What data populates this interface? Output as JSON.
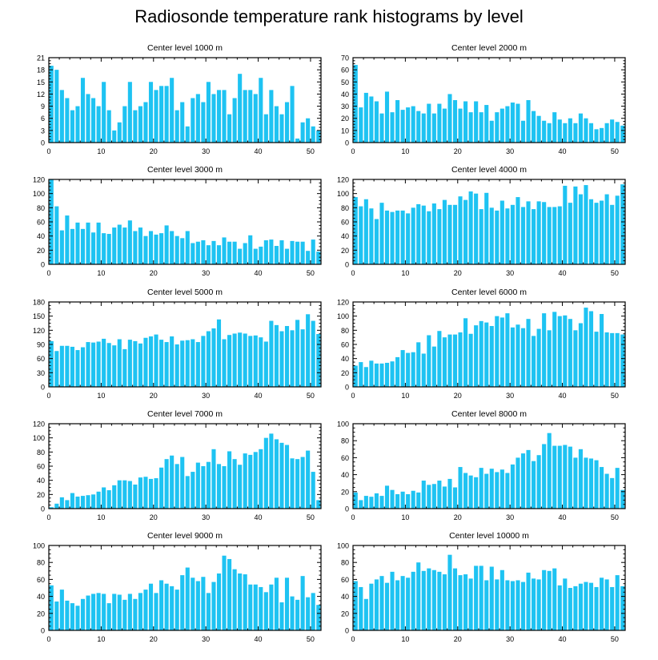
{
  "title": "Radiosonde temperature rank histograms by level",
  "colors": {
    "bar": "#1ec3f2",
    "axis": "#000000",
    "background": "#ffffff"
  },
  "chart_data": [
    {
      "type": "bar",
      "title": "Center level 1000 m",
      "x": [
        0,
        1,
        2,
        3,
        4,
        5,
        6,
        7,
        8,
        9,
        10,
        11,
        12,
        13,
        14,
        15,
        16,
        17,
        18,
        19,
        20,
        21,
        22,
        23,
        24,
        25,
        26,
        27,
        28,
        29,
        30,
        31,
        32,
        33,
        34,
        35,
        36,
        37,
        38,
        39,
        40,
        41,
        42,
        43,
        44,
        45,
        46,
        47,
        48,
        49,
        50,
        51
      ],
      "values": [
        19,
        18,
        13,
        11,
        8,
        9,
        16,
        12,
        11,
        9,
        15,
        8,
        3,
        5,
        9,
        15,
        8,
        9,
        10,
        15,
        13,
        14,
        14,
        16,
        8,
        10,
        4,
        11,
        12,
        10,
        15,
        12,
        13,
        13,
        7,
        11,
        17,
        13,
        13,
        12,
        16,
        7,
        13,
        9,
        7,
        10,
        14,
        1,
        5,
        6,
        4,
        3
      ],
      "xlim": [
        0,
        52
      ],
      "ylim": [
        0,
        21
      ],
      "yticks": [
        0,
        3,
        6,
        9,
        12,
        15,
        18,
        21
      ],
      "xticks": [
        0,
        10,
        20,
        30,
        40,
        50
      ],
      "xlabel": "",
      "ylabel": ""
    },
    {
      "type": "bar",
      "title": "Center level 2000 m",
      "x": [
        0,
        1,
        2,
        3,
        4,
        5,
        6,
        7,
        8,
        9,
        10,
        11,
        12,
        13,
        14,
        15,
        16,
        17,
        18,
        19,
        20,
        21,
        22,
        23,
        24,
        25,
        26,
        27,
        28,
        29,
        30,
        31,
        32,
        33,
        34,
        35,
        36,
        37,
        38,
        39,
        40,
        41,
        42,
        43,
        44,
        45,
        46,
        47,
        48,
        49,
        50,
        51
      ],
      "values": [
        64,
        29,
        41,
        38,
        34,
        24,
        42,
        25,
        35,
        27,
        29,
        30,
        26,
        24,
        32,
        24,
        32,
        28,
        40,
        35,
        28,
        34,
        25,
        34,
        25,
        31,
        18,
        25,
        28,
        30,
        33,
        32,
        18,
        35,
        26,
        22,
        18,
        16,
        25,
        19,
        16,
        20,
        16,
        24,
        20,
        16,
        11,
        12,
        16,
        19,
        17,
        14
      ],
      "xlim": [
        0,
        52
      ],
      "ylim": [
        0,
        70
      ],
      "yticks": [
        0,
        10,
        20,
        30,
        40,
        50,
        60,
        70
      ],
      "xticks": [
        0,
        10,
        20,
        30,
        40,
        50
      ],
      "xlabel": "",
      "ylabel": ""
    },
    {
      "type": "bar",
      "title": "Center level 3000 m",
      "x": [
        0,
        1,
        2,
        3,
        4,
        5,
        6,
        7,
        8,
        9,
        10,
        11,
        12,
        13,
        14,
        15,
        16,
        17,
        18,
        19,
        20,
        21,
        22,
        23,
        24,
        25,
        26,
        27,
        28,
        29,
        30,
        31,
        32,
        33,
        34,
        35,
        36,
        37,
        38,
        39,
        40,
        41,
        42,
        43,
        44,
        45,
        46,
        47,
        48,
        49,
        50,
        51
      ],
      "values": [
        120,
        82,
        48,
        69,
        50,
        59,
        50,
        59,
        45,
        59,
        44,
        43,
        52,
        56,
        52,
        62,
        47,
        52,
        40,
        47,
        42,
        44,
        55,
        47,
        40,
        37,
        47,
        30,
        32,
        34,
        27,
        33,
        27,
        38,
        32,
        32,
        22,
        30,
        41,
        22,
        25,
        34,
        35,
        26,
        34,
        22,
        33,
        32,
        32,
        19,
        35,
        18
      ],
      "xlim": [
        0,
        52
      ],
      "ylim": [
        0,
        120
      ],
      "yticks": [
        0,
        20,
        40,
        60,
        80,
        100,
        120
      ],
      "xticks": [
        0,
        10,
        20,
        30,
        40,
        50
      ],
      "xlabel": "",
      "ylabel": ""
    },
    {
      "type": "bar",
      "title": "Center level 4000 m",
      "x": [
        0,
        1,
        2,
        3,
        4,
        5,
        6,
        7,
        8,
        9,
        10,
        11,
        12,
        13,
        14,
        15,
        16,
        17,
        18,
        19,
        20,
        21,
        22,
        23,
        24,
        25,
        26,
        27,
        28,
        29,
        30,
        31,
        32,
        33,
        34,
        35,
        36,
        37,
        38,
        39,
        40,
        41,
        42,
        43,
        44,
        45,
        46,
        47,
        48,
        49,
        50,
        51
      ],
      "values": [
        95,
        82,
        92,
        79,
        64,
        87,
        76,
        74,
        76,
        76,
        72,
        80,
        85,
        83,
        75,
        86,
        78,
        91,
        84,
        84,
        96,
        91,
        103,
        100,
        78,
        101,
        80,
        76,
        90,
        79,
        84,
        95,
        81,
        89,
        78,
        89,
        88,
        81,
        81,
        82,
        111,
        87,
        110,
        99,
        112,
        92,
        87,
        90,
        99,
        84,
        97,
        113
      ],
      "xlim": [
        0,
        52
      ],
      "ylim": [
        0,
        120
      ],
      "yticks": [
        0,
        20,
        40,
        60,
        80,
        100,
        120
      ],
      "xticks": [
        0,
        10,
        20,
        30,
        40,
        50
      ],
      "xlabel": "",
      "ylabel": ""
    },
    {
      "type": "bar",
      "title": "Center level 5000 m",
      "x": [
        0,
        1,
        2,
        3,
        4,
        5,
        6,
        7,
        8,
        9,
        10,
        11,
        12,
        13,
        14,
        15,
        16,
        17,
        18,
        19,
        20,
        21,
        22,
        23,
        24,
        25,
        26,
        27,
        28,
        29,
        30,
        31,
        32,
        33,
        34,
        35,
        36,
        37,
        38,
        39,
        40,
        41,
        42,
        43,
        44,
        45,
        46,
        47,
        48,
        49,
        50,
        51
      ],
      "values": [
        97,
        76,
        87,
        87,
        85,
        78,
        84,
        95,
        94,
        96,
        102,
        93,
        88,
        101,
        80,
        100,
        97,
        92,
        104,
        107,
        111,
        100,
        95,
        107,
        90,
        98,
        99,
        101,
        95,
        108,
        118,
        124,
        143,
        101,
        110,
        113,
        115,
        113,
        108,
        109,
        105,
        96,
        140,
        131,
        118,
        129,
        120,
        142,
        122,
        154,
        140,
        112
      ],
      "xlim": [
        0,
        52
      ],
      "ylim": [
        0,
        180
      ],
      "yticks": [
        0,
        30,
        60,
        90,
        120,
        150,
        180
      ],
      "xticks": [
        0,
        10,
        20,
        30,
        40,
        50
      ],
      "xlabel": "",
      "ylabel": ""
    },
    {
      "type": "bar",
      "title": "Center level 6000 m",
      "x": [
        0,
        1,
        2,
        3,
        4,
        5,
        6,
        7,
        8,
        9,
        10,
        11,
        12,
        13,
        14,
        15,
        16,
        17,
        18,
        19,
        20,
        21,
        22,
        23,
        24,
        25,
        26,
        27,
        28,
        29,
        30,
        31,
        32,
        33,
        34,
        35,
        36,
        37,
        38,
        39,
        40,
        41,
        42,
        43,
        44,
        45,
        46,
        47,
        48,
        49,
        50,
        51
      ],
      "values": [
        30,
        35,
        28,
        37,
        33,
        33,
        34,
        36,
        42,
        52,
        48,
        49,
        63,
        47,
        73,
        57,
        79,
        70,
        74,
        74,
        77,
        97,
        75,
        87,
        93,
        91,
        86,
        100,
        98,
        104,
        84,
        88,
        83,
        96,
        72,
        82,
        104,
        80,
        106,
        100,
        101,
        96,
        80,
        90,
        112,
        107,
        78,
        103,
        77,
        76,
        76,
        74
      ],
      "xlim": [
        0,
        52
      ],
      "ylim": [
        0,
        120
      ],
      "yticks": [
        0,
        20,
        40,
        60,
        80,
        100,
        120
      ],
      "xticks": [
        0,
        10,
        20,
        30,
        40,
        50
      ],
      "xlabel": "",
      "ylabel": ""
    },
    {
      "type": "bar",
      "title": "Center level 7000 m",
      "x": [
        0,
        1,
        2,
        3,
        4,
        5,
        6,
        7,
        8,
        9,
        10,
        11,
        12,
        13,
        14,
        15,
        16,
        17,
        18,
        19,
        20,
        21,
        22,
        23,
        24,
        25,
        26,
        27,
        28,
        29,
        30,
        31,
        32,
        33,
        34,
        35,
        36,
        37,
        38,
        39,
        40,
        41,
        42,
        43,
        44,
        45,
        46,
        47,
        48,
        49,
        50,
        51
      ],
      "values": [
        2,
        7,
        16,
        12,
        22,
        17,
        18,
        19,
        20,
        24,
        30,
        26,
        33,
        40,
        40,
        39,
        34,
        44,
        45,
        42,
        43,
        58,
        70,
        75,
        63,
        73,
        46,
        52,
        65,
        60,
        66,
        84,
        63,
        60,
        81,
        70,
        62,
        78,
        76,
        80,
        84,
        100,
        106,
        98,
        93,
        90,
        71,
        70,
        73,
        82,
        52,
        12
      ],
      "xlim": [
        0,
        52
      ],
      "ylim": [
        0,
        120
      ],
      "yticks": [
        0,
        20,
        40,
        60,
        80,
        100,
        120
      ],
      "xticks": [
        0,
        10,
        20,
        30,
        40,
        50
      ],
      "xlabel": "",
      "ylabel": ""
    },
    {
      "type": "bar",
      "title": "Center level 8000 m",
      "x": [
        0,
        1,
        2,
        3,
        4,
        5,
        6,
        7,
        8,
        9,
        10,
        11,
        12,
        13,
        14,
        15,
        16,
        17,
        18,
        19,
        20,
        21,
        22,
        23,
        24,
        25,
        26,
        27,
        28,
        29,
        30,
        31,
        32,
        33,
        34,
        35,
        36,
        37,
        38,
        39,
        40,
        41,
        42,
        43,
        44,
        45,
        46,
        47,
        48,
        49,
        50,
        51
      ],
      "values": [
        19,
        10,
        15,
        14,
        18,
        15,
        27,
        22,
        17,
        20,
        17,
        21,
        19,
        33,
        28,
        29,
        33,
        26,
        35,
        25,
        49,
        42,
        39,
        37,
        48,
        41,
        47,
        43,
        46,
        42,
        52,
        60,
        65,
        69,
        56,
        63,
        76,
        89,
        74,
        74,
        75,
        73,
        60,
        70,
        60,
        59,
        57,
        49,
        41,
        36,
        48,
        22
      ],
      "xlim": [
        0,
        52
      ],
      "ylim": [
        0,
        100
      ],
      "yticks": [
        0,
        20,
        40,
        60,
        80,
        100
      ],
      "xticks": [
        0,
        10,
        20,
        30,
        40,
        50
      ],
      "xlabel": "",
      "ylabel": ""
    },
    {
      "type": "bar",
      "title": "Center level 9000 m",
      "x": [
        0,
        1,
        2,
        3,
        4,
        5,
        6,
        7,
        8,
        9,
        10,
        11,
        12,
        13,
        14,
        15,
        16,
        17,
        18,
        19,
        20,
        21,
        22,
        23,
        24,
        25,
        26,
        27,
        28,
        29,
        30,
        31,
        32,
        33,
        34,
        35,
        36,
        37,
        38,
        39,
        40,
        41,
        42,
        43,
        44,
        45,
        46,
        47,
        48,
        49,
        50,
        51
      ],
      "values": [
        53,
        34,
        48,
        35,
        32,
        29,
        37,
        41,
        43,
        44,
        43,
        32,
        43,
        42,
        36,
        43,
        37,
        44,
        48,
        55,
        44,
        59,
        55,
        52,
        48,
        65,
        74,
        62,
        58,
        63,
        44,
        57,
        67,
        88,
        84,
        72,
        67,
        66,
        54,
        54,
        51,
        45,
        54,
        62,
        33,
        62,
        40,
        36,
        64,
        39,
        44,
        30
      ],
      "xlim": [
        0,
        52
      ],
      "ylim": [
        0,
        100
      ],
      "yticks": [
        0,
        20,
        40,
        60,
        80,
        100
      ],
      "xticks": [
        0,
        10,
        20,
        30,
        40,
        50
      ],
      "xlabel": "",
      "ylabel": ""
    },
    {
      "type": "bar",
      "title": "Center level 10000 m",
      "x": [
        0,
        1,
        2,
        3,
        4,
        5,
        6,
        7,
        8,
        9,
        10,
        11,
        12,
        13,
        14,
        15,
        16,
        17,
        18,
        19,
        20,
        21,
        22,
        23,
        24,
        25,
        26,
        27,
        28,
        29,
        30,
        31,
        32,
        33,
        34,
        35,
        36,
        37,
        38,
        39,
        40,
        41,
        42,
        43,
        44,
        45,
        46,
        47,
        48,
        49,
        50,
        51
      ],
      "values": [
        58,
        51,
        37,
        55,
        60,
        64,
        56,
        69,
        59,
        64,
        62,
        69,
        80,
        70,
        73,
        71,
        69,
        66,
        89,
        73,
        65,
        66,
        61,
        76,
        76,
        59,
        75,
        60,
        71,
        59,
        58,
        59,
        57,
        68,
        61,
        60,
        71,
        70,
        73,
        53,
        61,
        50,
        52,
        55,
        57,
        56,
        51,
        62,
        60,
        51,
        65,
        52
      ],
      "xlim": [
        0,
        52
      ],
      "ylim": [
        0,
        100
      ],
      "yticks": [
        0,
        20,
        40,
        60,
        80,
        100
      ],
      "xticks": [
        0,
        10,
        20,
        30,
        40,
        50
      ],
      "xlabel": "",
      "ylabel": ""
    }
  ]
}
